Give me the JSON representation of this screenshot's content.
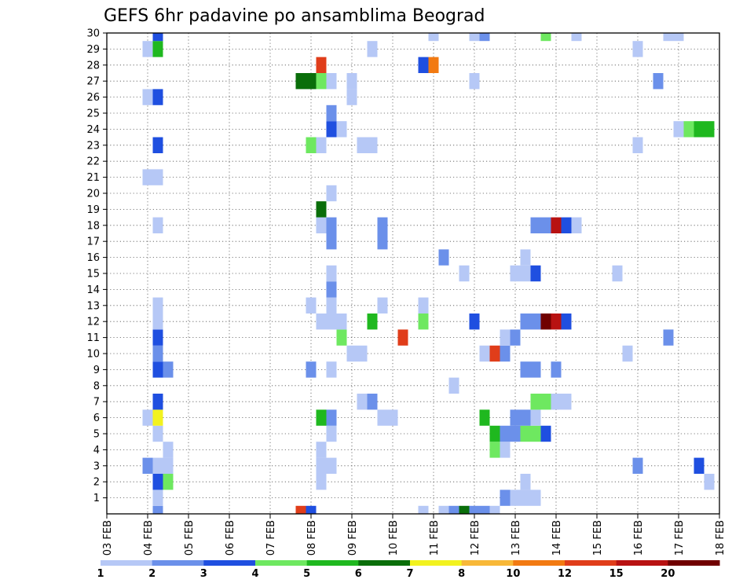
{
  "chart_data": {
    "type": "heatmap",
    "title": "GEFS 6hr padavine po ansamblima Beograd",
    "xlabel": "",
    "ylabel": "",
    "x_ticks": [
      "03 FEB",
      "04 FEB",
      "05 FEB",
      "06 FEB",
      "07 FEB",
      "08 FEB",
      "09 FEB",
      "10 FEB",
      "11 FEB",
      "12 FEB",
      "13 FEB",
      "14 FEB",
      "15 FEB",
      "16 FEB",
      "17 FEB",
      "18 FEB"
    ],
    "y_ticks": [
      "1",
      "2",
      "3",
      "4",
      "5",
      "6",
      "7",
      "8",
      "9",
      "10",
      "11",
      "12",
      "13",
      "14",
      "15",
      "16",
      "17",
      "18",
      "19",
      "20",
      "21",
      "22",
      "23",
      "24",
      "25",
      "26",
      "27",
      "28",
      "29",
      "30"
    ],
    "x_range": [
      "03 FEB 00Z",
      "18 FEB 00Z"
    ],
    "y_range": [
      0,
      30
    ],
    "grid": true,
    "value_units": "mm / 6h",
    "color_levels": [
      1,
      2,
      3,
      4,
      5,
      6,
      7,
      8,
      10,
      12,
      15,
      20
    ],
    "level_colors": [
      "#b6c8f6",
      "#6b90ea",
      "#1f4fe0",
      "#6ee860",
      "#1fb81f",
      "#0a6e0a",
      "#f2f21f",
      "#f8b838",
      "#f27a12",
      "#e03d1a",
      "#b81212",
      "#700000"
    ],
    "cells": [
      [
        4.25,
        0,
        2
      ],
      [
        7.75,
        0,
        10
      ],
      [
        8.0,
        0,
        3
      ],
      [
        10.75,
        0,
        1
      ],
      [
        11.25,
        0,
        1
      ],
      [
        11.5,
        0,
        2
      ],
      [
        11.75,
        0,
        6
      ],
      [
        12.0,
        0,
        2
      ],
      [
        12.25,
        0,
        2
      ],
      [
        12.5,
        0,
        1
      ],
      [
        4.25,
        1,
        1
      ],
      [
        12.75,
        1,
        2
      ],
      [
        13.0,
        1,
        1
      ],
      [
        13.25,
        1,
        1
      ],
      [
        13.5,
        1,
        1
      ],
      [
        4.25,
        2,
        3
      ],
      [
        4.5,
        2,
        4
      ],
      [
        8.25,
        2,
        1
      ],
      [
        13.25,
        2,
        1
      ],
      [
        17.75,
        2,
        1
      ],
      [
        4.0,
        3,
        2
      ],
      [
        4.25,
        3,
        1
      ],
      [
        4.5,
        3,
        1
      ],
      [
        8.25,
        3,
        1
      ],
      [
        8.5,
        3,
        1
      ],
      [
        16.0,
        3,
        2
      ],
      [
        17.5,
        3,
        3
      ],
      [
        4.5,
        4,
        1
      ],
      [
        8.25,
        4,
        1
      ],
      [
        12.5,
        4,
        4
      ],
      [
        12.75,
        4,
        1
      ],
      [
        4.25,
        5,
        1
      ],
      [
        8.5,
        5,
        1
      ],
      [
        12.5,
        5,
        5
      ],
      [
        12.75,
        5,
        2
      ],
      [
        13.0,
        5,
        2
      ],
      [
        13.25,
        5,
        4
      ],
      [
        13.5,
        5,
        4
      ],
      [
        13.75,
        5,
        3
      ],
      [
        4.0,
        6,
        1
      ],
      [
        4.25,
        6,
        7
      ],
      [
        8.25,
        6,
        5
      ],
      [
        8.5,
        6,
        2
      ],
      [
        9.75,
        6,
        1
      ],
      [
        10.0,
        6,
        1
      ],
      [
        12.25,
        6,
        5
      ],
      [
        13.0,
        6,
        2
      ],
      [
        13.25,
        6,
        2
      ],
      [
        13.5,
        6,
        1
      ],
      [
        4.25,
        7,
        3
      ],
      [
        9.25,
        7,
        1
      ],
      [
        9.5,
        7,
        2
      ],
      [
        13.5,
        7,
        4
      ],
      [
        13.75,
        7,
        4
      ],
      [
        14.0,
        7,
        1
      ],
      [
        14.25,
        7,
        1
      ],
      [
        11.5,
        8,
        1
      ],
      [
        4.25,
        9,
        3
      ],
      [
        4.5,
        9,
        2
      ],
      [
        8.0,
        9,
        2
      ],
      [
        8.5,
        9,
        1
      ],
      [
        13.25,
        9,
        2
      ],
      [
        13.5,
        9,
        2
      ],
      [
        14.0,
        9,
        2
      ],
      [
        4.25,
        10,
        2
      ],
      [
        9.0,
        10,
        1
      ],
      [
        9.25,
        10,
        1
      ],
      [
        12.25,
        10,
        1
      ],
      [
        12.5,
        10,
        10
      ],
      [
        12.75,
        10,
        2
      ],
      [
        15.75,
        10,
        1
      ],
      [
        4.25,
        11,
        3
      ],
      [
        8.75,
        11,
        4
      ],
      [
        10.25,
        11,
        10
      ],
      [
        12.75,
        11,
        1
      ],
      [
        13.0,
        11,
        2
      ],
      [
        16.75,
        11,
        2
      ],
      [
        4.25,
        12,
        1
      ],
      [
        8.25,
        12,
        1
      ],
      [
        8.5,
        12,
        1
      ],
      [
        8.75,
        12,
        1
      ],
      [
        9.5,
        12,
        5
      ],
      [
        10.75,
        12,
        4
      ],
      [
        12.0,
        12,
        3
      ],
      [
        13.25,
        12,
        2
      ],
      [
        13.5,
        12,
        2
      ],
      [
        13.75,
        12,
        12
      ],
      [
        14.0,
        12,
        11
      ],
      [
        14.25,
        12,
        3
      ],
      [
        4.25,
        13,
        1
      ],
      [
        8.0,
        13,
        1
      ],
      [
        8.5,
        13,
        1
      ],
      [
        9.75,
        13,
        1
      ],
      [
        10.75,
        13,
        1
      ],
      [
        8.5,
        14,
        2
      ],
      [
        8.5,
        15,
        1
      ],
      [
        11.75,
        15,
        1
      ],
      [
        13.0,
        15,
        1
      ],
      [
        13.25,
        15,
        1
      ],
      [
        13.5,
        15,
        3
      ],
      [
        15.5,
        15,
        1
      ],
      [
        11.25,
        16,
        2
      ],
      [
        13.25,
        16,
        1
      ],
      [
        8.5,
        17,
        2
      ],
      [
        9.75,
        17,
        2
      ],
      [
        4.25,
        18,
        1
      ],
      [
        8.25,
        18,
        1
      ],
      [
        8.5,
        18,
        2
      ],
      [
        9.75,
        18,
        2
      ],
      [
        13.5,
        18,
        2
      ],
      [
        13.75,
        18,
        2
      ],
      [
        14.0,
        18,
        11
      ],
      [
        14.25,
        18,
        3
      ],
      [
        14.5,
        18,
        1
      ],
      [
        8.25,
        19,
        6
      ],
      [
        8.5,
        20,
        1
      ],
      [
        4.0,
        21,
        1
      ],
      [
        4.25,
        21,
        1
      ],
      [
        16.0,
        23,
        1
      ],
      [
        4.25,
        23,
        3
      ],
      [
        8.0,
        23,
        4
      ],
      [
        8.25,
        23,
        1
      ],
      [
        9.25,
        23,
        1
      ],
      [
        9.5,
        23,
        1
      ],
      [
        8.5,
        24,
        3
      ],
      [
        8.75,
        24,
        1
      ],
      [
        17.0,
        24,
        1
      ],
      [
        17.25,
        24,
        4
      ],
      [
        17.5,
        24,
        5
      ],
      [
        17.75,
        24,
        5
      ],
      [
        8.5,
        25,
        2
      ],
      [
        4.0,
        26,
        1
      ],
      [
        4.25,
        26,
        3
      ],
      [
        9.0,
        26,
        1
      ],
      [
        7.75,
        27,
        6
      ],
      [
        8.0,
        27,
        6
      ],
      [
        8.25,
        27,
        4
      ],
      [
        8.5,
        27,
        1
      ],
      [
        9.0,
        27,
        1
      ],
      [
        12.0,
        27,
        1
      ],
      [
        16.5,
        27,
        2
      ],
      [
        8.25,
        28,
        10
      ],
      [
        10.75,
        28,
        3
      ],
      [
        11.0,
        28,
        9
      ],
      [
        4.0,
        29,
        1
      ],
      [
        4.25,
        29,
        5
      ],
      [
        9.5,
        29,
        1
      ],
      [
        16.0,
        29,
        1
      ],
      [
        4.25,
        30,
        3
      ],
      [
        11.0,
        30,
        1
      ],
      [
        12.0,
        30,
        1
      ],
      [
        12.25,
        30,
        2
      ],
      [
        13.75,
        30,
        4
      ],
      [
        14.5,
        30,
        1
      ],
      [
        16.75,
        30,
        1
      ],
      [
        17.0,
        30,
        1
      ]
    ],
    "legend": {
      "labels": [
        "1",
        "2",
        "3",
        "4",
        "5",
        "6",
        "7",
        "8",
        "10",
        "12",
        "15",
        "20"
      ]
    }
  }
}
